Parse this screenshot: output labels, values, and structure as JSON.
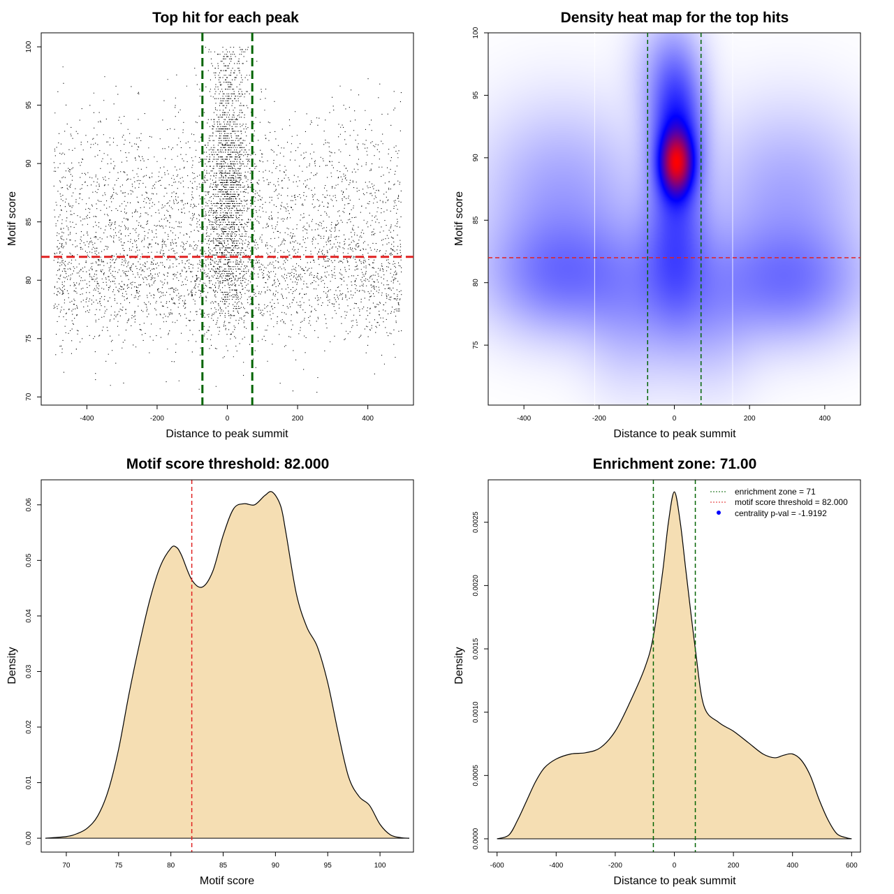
{
  "colors": {
    "points": "#000000",
    "zone_line": "#006400",
    "threshold_line": "#e02020",
    "density_fill": "#f5deb3",
    "density_line": "#000000",
    "heat_low": "#ffffff",
    "heat_mid": "#0000ff",
    "heat_high": "#ff0000",
    "pval_dot": "#0000ff"
  },
  "chart_data": [
    {
      "id": "scatter",
      "type": "scatter",
      "title": "Top hit for each peak",
      "xlabel": "Distance to peak summit",
      "ylabel": "Motif score",
      "xlim": [
        -530,
        530
      ],
      "ylim": [
        69.3,
        101.2
      ],
      "xticks": [
        -400,
        -200,
        0,
        200,
        400
      ],
      "yticks": [
        70,
        75,
        80,
        85,
        90,
        95,
        100
      ],
      "vlines": [
        -71,
        71
      ],
      "hline": 82,
      "n_points_approx": 6000,
      "note": "points approximate a dense central column near distance 0 with scores 80-100 plus a broad background across -500..500 and scores 70-98"
    },
    {
      "id": "heatmap",
      "type": "heatmap",
      "title": "Density heat map for the top hits",
      "xlabel": "Distance to peak summit",
      "ylabel": "Motif score",
      "xlim": [
        -495,
        495
      ],
      "ylim": [
        70.2,
        100
      ],
      "xticks": [
        -400,
        -200,
        0,
        200,
        400
      ],
      "yticks": [
        75,
        80,
        85,
        90,
        95,
        100
      ],
      "vlines": [
        -71,
        71
      ],
      "hline": 82,
      "peak": {
        "x": 5,
        "y": 89.6
      },
      "components": [
        {
          "x": 5,
          "y": 89.6,
          "sx": 28,
          "sy": 1.6,
          "w": 1.0
        },
        {
          "x": 5,
          "y": 91.5,
          "sx": 45,
          "sy": 4.0,
          "w": 0.55
        },
        {
          "x": 0,
          "y": 82,
          "sx": 60,
          "sy": 4.0,
          "w": 0.3
        },
        {
          "x": -20,
          "y": 97,
          "sx": 60,
          "sy": 3,
          "w": 0.12
        },
        {
          "x": -300,
          "y": 80.5,
          "sx": 130,
          "sy": 3.0,
          "w": 0.25
        },
        {
          "x": 300,
          "y": 80,
          "sx": 130,
          "sy": 3.0,
          "w": 0.25
        },
        {
          "x": -300,
          "y": 87,
          "sx": 140,
          "sy": 4.5,
          "w": 0.16
        },
        {
          "x": 300,
          "y": 87,
          "sx": 140,
          "sy": 4.5,
          "w": 0.15
        },
        {
          "x": 100,
          "y": 78,
          "sx": 80,
          "sy": 4,
          "w": 0.12
        },
        {
          "x": -120,
          "y": 78,
          "sx": 80,
          "sy": 4,
          "w": 0.12
        }
      ],
      "faint_verticals": [
        -212,
        155
      ]
    },
    {
      "id": "score-density",
      "type": "area",
      "title": "Motif score threshold: 82.000",
      "xlabel": "Motif score",
      "ylabel": "Density",
      "xlim": [
        67.6,
        103.2
      ],
      "ylim": [
        -0.0025,
        0.0645
      ],
      "xticks": [
        70,
        75,
        80,
        85,
        90,
        95,
        100
      ],
      "yticks": [
        0.0,
        0.01,
        0.02,
        0.03,
        0.04,
        0.05,
        0.06
      ],
      "ytick_labels": [
        "0.00",
        "0.01",
        "0.02",
        "0.03",
        "0.04",
        "0.05",
        "0.06"
      ],
      "x": [
        68,
        70,
        71,
        72,
        73,
        74,
        75,
        76,
        77,
        78,
        79,
        80,
        80.5,
        81,
        82,
        83,
        84,
        85,
        86,
        87,
        88,
        89,
        89.7,
        90.5,
        91,
        92,
        93,
        94,
        95,
        96,
        97,
        98,
        99,
        100,
        101,
        102,
        102.8
      ],
      "y": [
        0.0,
        0.0003,
        0.0008,
        0.0018,
        0.004,
        0.0085,
        0.016,
        0.026,
        0.035,
        0.043,
        0.049,
        0.0522,
        0.0524,
        0.051,
        0.0465,
        0.0452,
        0.048,
        0.0545,
        0.0593,
        0.0602,
        0.06,
        0.0617,
        0.0623,
        0.0598,
        0.055,
        0.044,
        0.038,
        0.0345,
        0.028,
        0.019,
        0.011,
        0.0075,
        0.0059,
        0.0025,
        0.0006,
        0.0001,
        0.0
      ],
      "vline": 82
    },
    {
      "id": "distance-density",
      "type": "area",
      "title": "Enrichment zone: 71.00",
      "xlabel": "Distance to peak summit",
      "ylabel": "Density",
      "xlim": [
        -630,
        630
      ],
      "ylim": [
        -0.000105,
        0.002835
      ],
      "xticks": [
        -600,
        -400,
        -200,
        0,
        200,
        400,
        600
      ],
      "yticks": [
        0.0,
        0.0005,
        0.001,
        0.0015,
        0.002,
        0.0025
      ],
      "ytick_labels": [
        "0.0000",
        "0.0005",
        "0.0010",
        "0.0015",
        "0.0020",
        "0.0025"
      ],
      "x": [
        -600,
        -560,
        -530,
        -500,
        -470,
        -440,
        -400,
        -350,
        -300,
        -250,
        -200,
        -150,
        -100,
        -71,
        -40,
        -20,
        0,
        20,
        40,
        71,
        100,
        150,
        200,
        250,
        300,
        340,
        370,
        400,
        430,
        460,
        490,
        520,
        550,
        580,
        600
      ],
      "y": [
        0.0,
        3e-05,
        0.00015,
        0.0003,
        0.00045,
        0.00056,
        0.00063,
        0.00067,
        0.00068,
        0.00072,
        0.00085,
        0.00108,
        0.00135,
        0.0016,
        0.0021,
        0.0025,
        0.00274,
        0.0025,
        0.0021,
        0.0015,
        0.00105,
        0.00092,
        0.00085,
        0.00076,
        0.00067,
        0.00064,
        0.00066,
        0.00067,
        0.00062,
        0.0005,
        0.00031,
        0.00015,
        4e-05,
        1e-05,
        0.0
      ],
      "vlines": [
        -71,
        71
      ],
      "legend": [
        {
          "label": "enrichment zone = 71",
          "style": "dotted",
          "color": "#006400"
        },
        {
          "label": "motif score threshold = 82.000",
          "style": "dotted",
          "color": "#e02020"
        },
        {
          "label": "centrality p-val = -1.9192",
          "style": "dot",
          "color": "#0000ff"
        }
      ]
    }
  ]
}
